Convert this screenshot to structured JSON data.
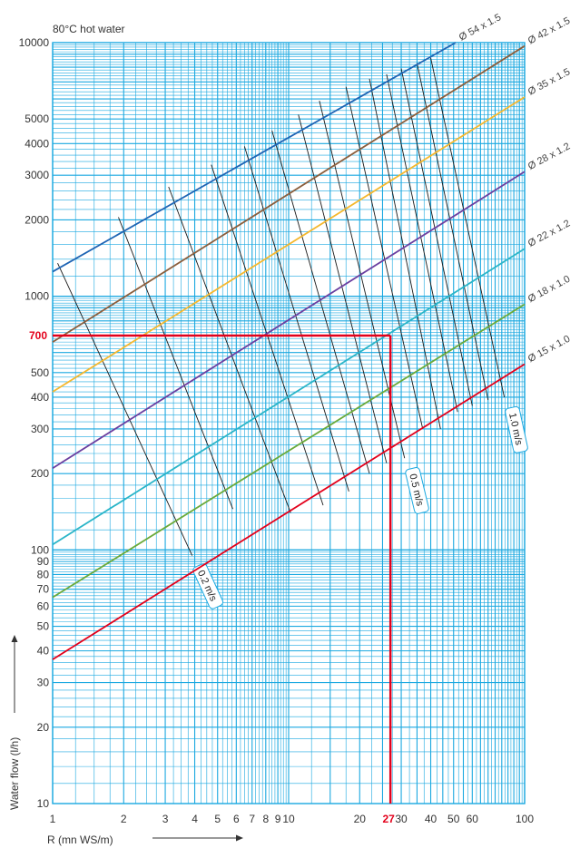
{
  "chart_data": {
    "type": "line",
    "title": "80°C hot water",
    "xlabel": "R (mn WS/m)",
    "ylabel": "Water flow (l/h)",
    "x_scale": "log",
    "y_scale": "log",
    "xlim": [
      1,
      100
    ],
    "ylim": [
      10,
      10000
    ],
    "x_tick_labels": [
      "1",
      "2",
      "3",
      "4",
      "5",
      "6",
      "7",
      "8",
      "9",
      "10",
      "20",
      "30",
      "40",
      "50",
      "60",
      "100"
    ],
    "y_tick_labels": [
      "10",
      "20",
      "30",
      "40",
      "50",
      "60",
      "70",
      "80",
      "90",
      "100",
      "200",
      "300",
      "400",
      "500",
      "1000",
      "2000",
      "3000",
      "4000",
      "5000",
      "10000"
    ],
    "grid": true,
    "series": [
      {
        "name": "Ø 15 x 1.0",
        "color": "#e3001b",
        "points": [
          [
            1,
            37
          ],
          [
            100,
            540
          ]
        ]
      },
      {
        "name": "Ø 18 x 1.0",
        "color": "#6aaa3a",
        "points": [
          [
            1,
            65
          ],
          [
            100,
            930
          ]
        ]
      },
      {
        "name": "Ø 22 x 1.2",
        "color": "#2ab5c8",
        "points": [
          [
            1,
            105
          ],
          [
            100,
            1540
          ]
        ]
      },
      {
        "name": "Ø 28 x 1.2",
        "color": "#6b3fa0",
        "points": [
          [
            1,
            210
          ],
          [
            100,
            3100
          ]
        ]
      },
      {
        "name": "Ø 35 x 1.5",
        "color": "#f5b82e",
        "points": [
          [
            1,
            420
          ],
          [
            100,
            6100
          ]
        ]
      },
      {
        "name": "Ø 42 x 1.5",
        "color": "#8b5e3c",
        "points": [
          [
            1,
            660
          ],
          [
            100,
            9700
          ]
        ]
      },
      {
        "name": "Ø 54 x 1.5",
        "color": "#1e64b4",
        "points": [
          [
            1,
            1250
          ],
          [
            51,
            10000
          ]
        ]
      }
    ],
    "velocity_lines": [
      {
        "label": "0.2 m/s",
        "points": [
          [
            1.05,
            1350
          ],
          [
            3.9,
            95
          ]
        ]
      },
      {
        "points": [
          [
            1.9,
            2050
          ],
          [
            5.8,
            145
          ]
        ]
      },
      {
        "points": [
          [
            3.1,
            2700
          ],
          [
            10.2,
            140
          ]
        ]
      },
      {
        "points": [
          [
            4.7,
            3300
          ],
          [
            14,
            150
          ]
        ]
      },
      {
        "points": [
          [
            6.5,
            3900
          ],
          [
            18,
            170
          ]
        ]
      },
      {
        "points": [
          [
            8.5,
            4500
          ],
          [
            22,
            200
          ]
        ]
      },
      {
        "points": [
          [
            11,
            5200
          ],
          [
            26,
            220
          ]
        ]
      },
      {
        "label": "0.5 m/s",
        "points": [
          [
            13.5,
            5900
          ],
          [
            31,
            230
          ]
        ]
      },
      {
        "points": [
          [
            17.5,
            6700
          ],
          [
            37,
            300
          ]
        ]
      },
      {
        "points": [
          [
            22,
            7200
          ],
          [
            44,
            300
          ]
        ]
      },
      {
        "points": [
          [
            26,
            7500
          ],
          [
            52,
            350
          ]
        ]
      },
      {
        "points": [
          [
            30,
            7900
          ],
          [
            60,
            370
          ]
        ]
      },
      {
        "points": [
          [
            35,
            8300
          ],
          [
            70,
            390
          ]
        ]
      },
      {
        "label": "1.0 m/s",
        "points": [
          [
            40,
            8700
          ],
          [
            82,
            400
          ]
        ]
      }
    ],
    "annotations": [
      {
        "label_x": "27",
        "label_y": "700",
        "x": 27,
        "y": 700,
        "color": "#e3001b"
      }
    ]
  },
  "colors": {
    "grid": "#1aa8e0",
    "highlight": "#e3001b"
  }
}
